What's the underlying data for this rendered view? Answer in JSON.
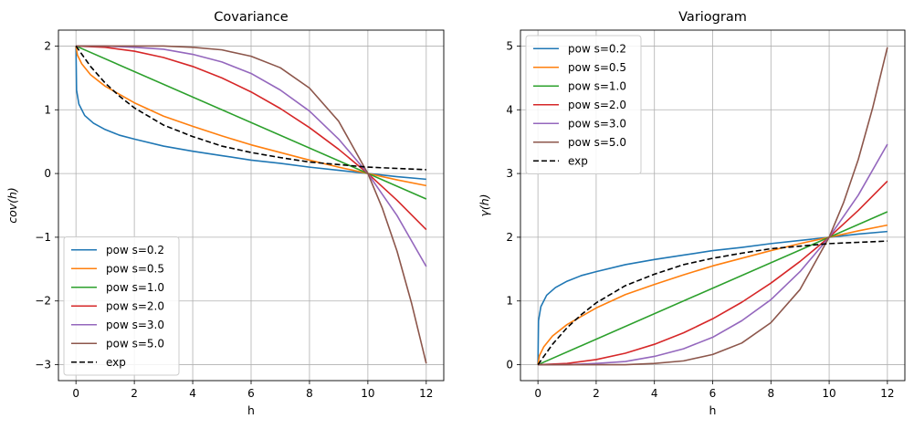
{
  "chart_data": [
    {
      "type": "line",
      "title": "Covariance",
      "xlabel": "h",
      "ylabel": "cov(h)",
      "xlim": [
        -0.6,
        12.6
      ],
      "ylim": [
        -3.25,
        2.25
      ],
      "xticks": [
        "0",
        "2",
        "4",
        "6",
        "8",
        "10",
        "12"
      ],
      "yticks": [
        "−3",
        "−2",
        "−1",
        "0",
        "1",
        "2"
      ],
      "grid": true,
      "legend_position": "lower-left",
      "series": [
        {
          "name": "pow s=0.2",
          "color": "#1f77b4",
          "dash": false,
          "x": [
            0,
            0.02,
            0.1,
            0.3,
            0.6,
            1,
            1.5,
            2,
            3,
            4,
            5,
            6,
            7,
            8,
            9,
            10,
            11,
            12
          ],
          "y": [
            2.0,
            1.31,
            1.09,
            0.91,
            0.79,
            0.69,
            0.6,
            0.54,
            0.43,
            0.35,
            0.28,
            0.21,
            0.16,
            0.1,
            0.05,
            0.0,
            -0.05,
            -0.09
          ]
        },
        {
          "name": "pow s=0.5",
          "color": "#ff7f0e",
          "dash": false,
          "x": [
            0,
            0.05,
            0.2,
            0.5,
            1,
            2,
            3,
            4,
            5,
            6,
            7,
            8,
            9,
            10,
            11,
            12
          ],
          "y": [
            2.0,
            1.86,
            1.72,
            1.55,
            1.37,
            1.11,
            0.9,
            0.74,
            0.59,
            0.45,
            0.33,
            0.21,
            0.1,
            0.0,
            -0.1,
            -0.19
          ]
        },
        {
          "name": "pow s=1.0",
          "color": "#2ca02c",
          "dash": false,
          "x": [
            0,
            12
          ],
          "y": [
            2.0,
            -0.4
          ]
        },
        {
          "name": "pow s=2.0",
          "color": "#d62728",
          "dash": false,
          "x": [
            0,
            1,
            2,
            3,
            4,
            5,
            6,
            7,
            8,
            9,
            10,
            11,
            12
          ],
          "y": [
            2.0,
            1.98,
            1.92,
            1.82,
            1.68,
            1.5,
            1.28,
            1.02,
            0.72,
            0.38,
            0.0,
            -0.42,
            -0.88
          ]
        },
        {
          "name": "pow s=3.0",
          "color": "#9467bd",
          "dash": false,
          "x": [
            0,
            1,
            2,
            3,
            4,
            5,
            6,
            7,
            8,
            9,
            10,
            11,
            12
          ],
          "y": [
            2.0,
            2.0,
            1.98,
            1.95,
            1.87,
            1.75,
            1.57,
            1.31,
            0.98,
            0.54,
            0.0,
            -0.66,
            -1.46
          ]
        },
        {
          "name": "pow s=5.0",
          "color": "#8c564b",
          "dash": false,
          "x": [
            0,
            1,
            2,
            3,
            4,
            5,
            6,
            7,
            8,
            9,
            10,
            10.5,
            11,
            11.5,
            12
          ],
          "y": [
            2.0,
            2.0,
            2.0,
            2.0,
            1.98,
            1.94,
            1.84,
            1.66,
            1.34,
            0.82,
            0.0,
            -0.55,
            -1.22,
            -2.04,
            -2.98
          ]
        },
        {
          "name": "exp",
          "color": "#000000",
          "dash": true,
          "x": [
            0,
            0.5,
            1,
            1.5,
            2,
            3,
            4,
            5,
            6,
            7,
            8,
            9,
            10,
            11,
            12
          ],
          "y": [
            2.0,
            1.68,
            1.42,
            1.21,
            1.03,
            0.76,
            0.58,
            0.43,
            0.33,
            0.25,
            0.18,
            0.14,
            0.1,
            0.08,
            0.06
          ]
        }
      ]
    },
    {
      "type": "line",
      "title": "Variogram",
      "xlabel": "h",
      "ylabel": "γ(h)",
      "xlim": [
        -0.6,
        12.6
      ],
      "ylim": [
        -0.25,
        5.25
      ],
      "xticks": [
        "0",
        "2",
        "4",
        "6",
        "8",
        "10",
        "12"
      ],
      "yticks": [
        "0",
        "1",
        "2",
        "3",
        "4",
        "5"
      ],
      "grid": true,
      "legend_position": "upper-left",
      "series": [
        {
          "name": "pow s=0.2",
          "color": "#1f77b4",
          "dash": false,
          "x": [
            0,
            0.02,
            0.1,
            0.3,
            0.6,
            1,
            1.5,
            2,
            3,
            4,
            5,
            6,
            7,
            8,
            9,
            10,
            11,
            12
          ],
          "y": [
            0.0,
            0.69,
            0.91,
            1.09,
            1.21,
            1.31,
            1.4,
            1.46,
            1.57,
            1.65,
            1.72,
            1.79,
            1.84,
            1.9,
            1.95,
            2.0,
            2.05,
            2.09
          ]
        },
        {
          "name": "pow s=0.5",
          "color": "#ff7f0e",
          "dash": false,
          "x": [
            0,
            0.05,
            0.2,
            0.5,
            1,
            2,
            3,
            4,
            5,
            6,
            7,
            8,
            9,
            10,
            11,
            12
          ],
          "y": [
            0.0,
            0.14,
            0.28,
            0.45,
            0.63,
            0.89,
            1.1,
            1.26,
            1.41,
            1.55,
            1.67,
            1.79,
            1.9,
            2.0,
            2.1,
            2.19
          ]
        },
        {
          "name": "pow s=1.0",
          "color": "#2ca02c",
          "dash": false,
          "x": [
            0,
            12
          ],
          "y": [
            0.0,
            2.4
          ]
        },
        {
          "name": "pow s=2.0",
          "color": "#d62728",
          "dash": false,
          "x": [
            0,
            1,
            2,
            3,
            4,
            5,
            6,
            7,
            8,
            9,
            10,
            11,
            12
          ],
          "y": [
            0.0,
            0.02,
            0.08,
            0.18,
            0.32,
            0.5,
            0.72,
            0.98,
            1.28,
            1.62,
            2.0,
            2.42,
            2.88
          ]
        },
        {
          "name": "pow s=3.0",
          "color": "#9467bd",
          "dash": false,
          "x": [
            0,
            1,
            2,
            3,
            4,
            5,
            6,
            7,
            8,
            9,
            10,
            11,
            12
          ],
          "y": [
            0.0,
            0.0,
            0.02,
            0.05,
            0.13,
            0.25,
            0.43,
            0.69,
            1.02,
            1.46,
            2.0,
            2.66,
            3.46
          ]
        },
        {
          "name": "pow s=5.0",
          "color": "#8c564b",
          "dash": false,
          "x": [
            0,
            1,
            2,
            3,
            4,
            5,
            6,
            7,
            8,
            9,
            10,
            10.5,
            11,
            11.5,
            12
          ],
          "y": [
            0.0,
            0.0,
            0.0,
            0.0,
            0.02,
            0.06,
            0.16,
            0.34,
            0.66,
            1.18,
            2.0,
            2.55,
            3.22,
            4.04,
            4.98
          ]
        },
        {
          "name": "exp",
          "color": "#000000",
          "dash": true,
          "x": [
            0,
            0.5,
            1,
            1.5,
            2,
            3,
            4,
            5,
            6,
            7,
            8,
            9,
            10,
            11,
            12
          ],
          "y": [
            0.0,
            0.32,
            0.58,
            0.79,
            0.97,
            1.24,
            1.42,
            1.57,
            1.67,
            1.75,
            1.82,
            1.86,
            1.9,
            1.92,
            1.94
          ]
        }
      ]
    }
  ]
}
